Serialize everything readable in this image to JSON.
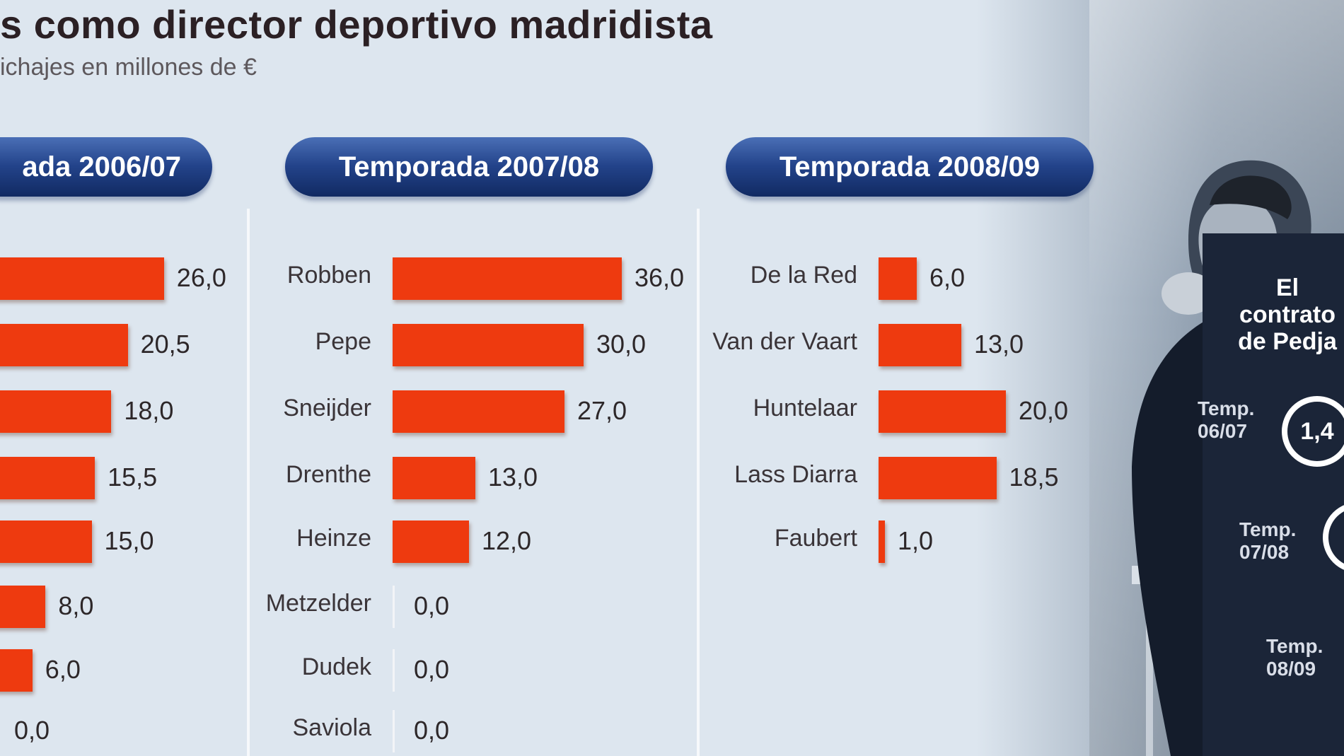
{
  "title": "s como director deportivo madridista",
  "subtitle": "ichajes en millones de €",
  "colors": {
    "bar": "#ee3a0f",
    "pill": "#1d3b80",
    "background": "#dde6ef",
    "panel": "#1b2538"
  },
  "chart_data": [
    {
      "type": "bar",
      "orientation": "horizontal",
      "title": "ada 2006/07",
      "categories": [
        "",
        "",
        "",
        "",
        "",
        "",
        "",
        ""
      ],
      "values": [
        26.0,
        20.5,
        18.0,
        15.5,
        15.0,
        8.0,
        6.0,
        0.0
      ],
      "value_labels": [
        "26,0",
        "20,5",
        "18,0",
        "15,5",
        "15,0",
        "8,0",
        "6,0",
        "0,0"
      ],
      "xlim": [
        0,
        36
      ]
    },
    {
      "type": "bar",
      "orientation": "horizontal",
      "title": "Temporada 2007/08",
      "categories": [
        "Robben",
        "Pepe",
        "Sneijder",
        "Drenthe",
        "Heinze",
        "Metzelder",
        "Dudek",
        "Saviola"
      ],
      "values": [
        36.0,
        30.0,
        27.0,
        13.0,
        12.0,
        0.0,
        0.0,
        0.0
      ],
      "value_labels": [
        "36,0",
        "30,0",
        "27,0",
        "13,0",
        "12,0",
        "0,0",
        "0,0",
        "0,0"
      ],
      "xlim": [
        0,
        36
      ]
    },
    {
      "type": "bar",
      "orientation": "horizontal",
      "title": "Temporada 2008/09",
      "categories": [
        "De la Red",
        "Van der Vaart",
        "Huntelaar",
        "Lass Diarra",
        "Faubert"
      ],
      "values": [
        6.0,
        13.0,
        20.0,
        18.5,
        1.0
      ],
      "value_labels": [
        "6,0",
        "13,0",
        "20,0",
        "18,5",
        "1,0"
      ],
      "xlim": [
        0,
        36
      ]
    }
  ],
  "side": {
    "heading_lines": [
      "El",
      "contrato",
      "de Pedja"
    ],
    "seasons": [
      {
        "label_lines": [
          "Temp.",
          "06/07"
        ],
        "value": "1,4"
      },
      {
        "label_lines": [
          "Temp.",
          "07/08"
        ],
        "value": ""
      },
      {
        "label_lines": [
          "Temp.",
          "08/09"
        ],
        "value": ""
      }
    ]
  }
}
